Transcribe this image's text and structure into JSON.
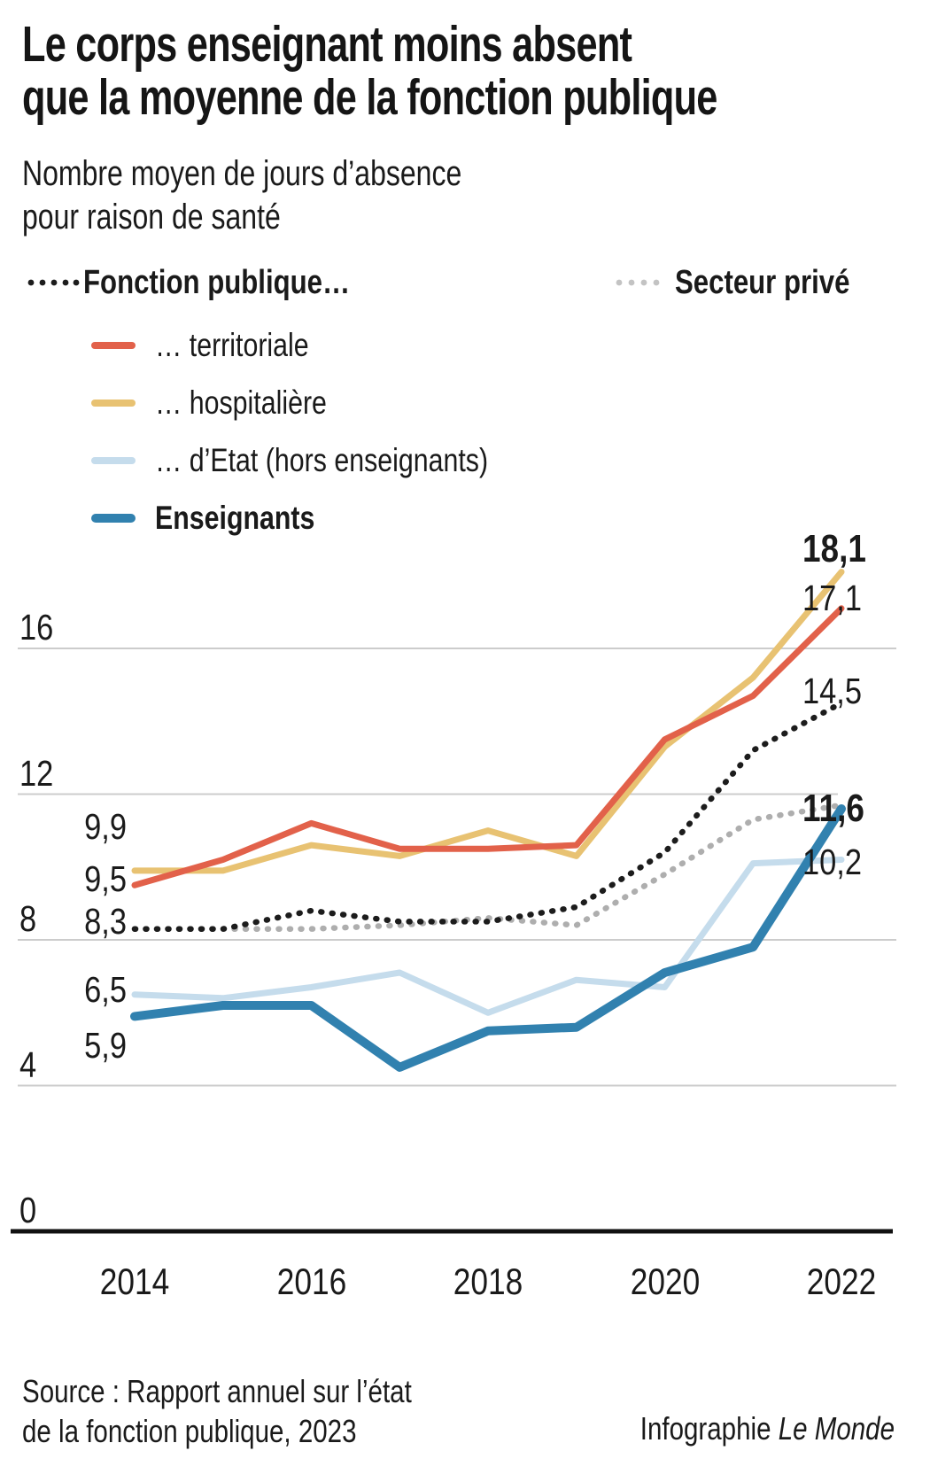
{
  "title": {
    "line1": "Le corps enseignant moins absent",
    "line2": "que la moyenne de la fonction publique"
  },
  "subtitle": {
    "line1": "Nombre moyen de jours d’absence",
    "line2": "pour raison de santé"
  },
  "legend": {
    "fonction_publique": "Fonction publique…",
    "secteur_prive": "Secteur privé",
    "territoriale": "… territoriale",
    "hospitaliere": "… hospitalière",
    "etat": "… d’Etat (hors enseignants)",
    "enseignants": "Enseignants"
  },
  "colors": {
    "territoriale": "#e2614a",
    "hospitaliere": "#e8c272",
    "etat": "#c5dcec",
    "enseignants": "#3181af",
    "fonction_publique": "#1c1c1c",
    "secteur_prive": "#aeaeae",
    "gridline": "#cccccc",
    "axis": "#111111"
  },
  "chart_data": {
    "type": "line",
    "x": [
      2014,
      2015,
      2016,
      2017,
      2018,
      2019,
      2020,
      2021,
      2022
    ],
    "series": [
      {
        "name": "Secteur privé",
        "style": "dotted",
        "color": "#aeaeae",
        "width": 6.5,
        "values": [
          8.3,
          8.3,
          8.3,
          8.4,
          8.6,
          8.4,
          9.8,
          11.3,
          11.7
        ]
      },
      {
        "name": "Fonction publique",
        "style": "dotted",
        "color": "#1c1c1c",
        "width": 6.5,
        "values": [
          8.3,
          8.3,
          8.8,
          8.5,
          8.5,
          8.9,
          10.4,
          13.2,
          14.5
        ]
      },
      {
        "name": "Fonction publique hospitalière",
        "style": "solid",
        "color": "#e8c272",
        "width": 7,
        "values": [
          9.9,
          9.9,
          10.6,
          10.3,
          11.0,
          10.3,
          13.3,
          15.2,
          18.1
        ]
      },
      {
        "name": "Fonction publique territoriale",
        "style": "solid",
        "color": "#e2614a",
        "width": 7,
        "values": [
          9.5,
          10.2,
          11.2,
          10.5,
          10.5,
          10.6,
          13.5,
          14.7,
          17.1
        ]
      },
      {
        "name": "Fonction publique d’Etat (hors enseignants)",
        "style": "solid",
        "color": "#c5dcec",
        "width": 7,
        "values": [
          6.5,
          6.4,
          6.7,
          7.1,
          6.0,
          6.9,
          6.7,
          10.1,
          10.2
        ]
      },
      {
        "name": "Enseignants",
        "style": "solid",
        "color": "#3181af",
        "width": 10,
        "values": [
          5.9,
          6.2,
          6.2,
          4.5,
          5.5,
          5.6,
          7.1,
          7.8,
          11.6
        ]
      }
    ],
    "ylim": [
      0,
      19
    ],
    "grid_values": [
      4,
      8,
      12,
      16
    ],
    "y_ticks": [
      {
        "label": "16",
        "value": 16
      },
      {
        "label": "12",
        "value": 12
      },
      {
        "label": "8",
        "value": 8
      },
      {
        "label": "4",
        "value": 4
      },
      {
        "label": "0",
        "value": 0
      }
    ],
    "x_ticks": [
      "2014",
      "2016",
      "2018",
      "2020",
      "2022"
    ],
    "labels_left": [
      {
        "text": "9,9",
        "value": 9.9,
        "bold": false
      },
      {
        "text": "9,5",
        "value": 9.5,
        "bold": false
      },
      {
        "text": "8,3",
        "value": 8.3,
        "bold": false
      },
      {
        "text": "6,5",
        "value": 6.5,
        "bold": false
      },
      {
        "text": "5,9",
        "value": 5.9,
        "bold": false
      }
    ],
    "labels_right": [
      {
        "text": "18,1",
        "value": 18.1,
        "bold": true
      },
      {
        "text": "17,1",
        "value": 17.1,
        "bold": false
      },
      {
        "text": "14,5",
        "value": 14.5,
        "bold": false
      },
      {
        "text": "11,6",
        "value": 11.6,
        "bold": true
      },
      {
        "text": "10,2",
        "value": 10.2,
        "bold": false
      }
    ],
    "legend_position": "top-left",
    "grid": true
  },
  "footer": {
    "source_line1": "Source : Rapport annuel sur l’état",
    "source_line2": "de la fonction publique, 2023",
    "credit_normal": "Infographie ",
    "credit_italic": "Le Monde"
  }
}
